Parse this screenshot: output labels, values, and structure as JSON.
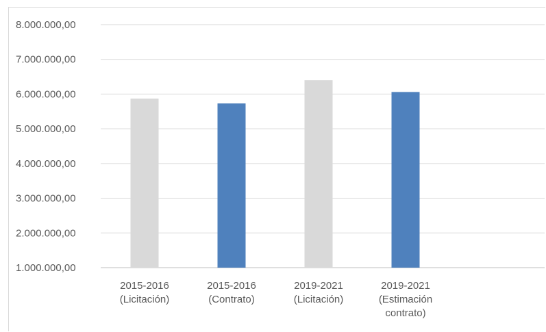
{
  "chart_data": {
    "type": "bar",
    "categories": [
      [
        "2015-2016",
        "(Licitación)"
      ],
      [
        "2015-2016",
        "(Contrato)"
      ],
      [
        "2019-2021",
        "(Licitación)"
      ],
      [
        "2019-2021",
        "(Estimación",
        "contrato)"
      ]
    ],
    "values": [
      5870000,
      5730000,
      6400000,
      6060000
    ],
    "bar_colors": [
      "#d9d9d9",
      "#4f81bd",
      "#d9d9d9",
      "#4f81bd"
    ],
    "y_ticks": [
      "1.000.000,00",
      "2.000.000,00",
      "3.000.000,00",
      "4.000.000,00",
      "5.000.000,00",
      "6.000.000,00",
      "7.000.000,00",
      "8.000.000,00"
    ],
    "ylim": [
      1000000,
      8000000
    ],
    "grid": true,
    "title": "",
    "xlabel": "",
    "ylabel": ""
  }
}
